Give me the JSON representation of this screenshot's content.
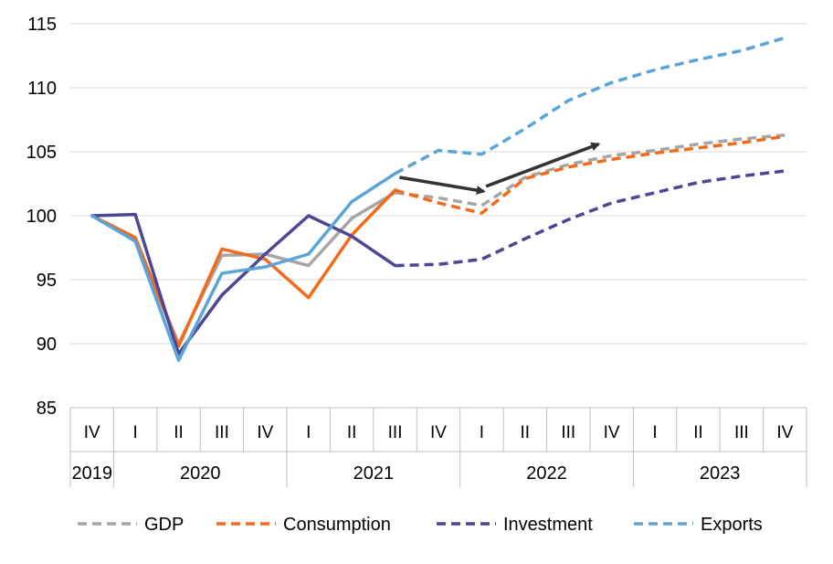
{
  "chart_data": {
    "type": "line",
    "title": "",
    "xlabel": "",
    "ylabel": "",
    "ylim": [
      85,
      115
    ],
    "yticks": [
      85,
      90,
      95,
      100,
      105,
      110,
      115
    ],
    "grid": true,
    "legend_position": "bottom",
    "quarters": [
      "IV",
      "I",
      "II",
      "III",
      "IV",
      "I",
      "II",
      "III",
      "IV",
      "I",
      "II",
      "III",
      "IV",
      "I",
      "II",
      "III",
      "IV"
    ],
    "years": [
      {
        "label": "2019",
        "span": 1
      },
      {
        "label": "2020",
        "span": 4
      },
      {
        "label": "2021",
        "span": 4
      },
      {
        "label": "2022",
        "span": 4
      },
      {
        "label": "2023",
        "span": 4
      }
    ],
    "forecast_start_index": 7,
    "series": [
      {
        "name": "GDP",
        "color": "#a6a6a6",
        "values": [
          100,
          98.2,
          90.0,
          96.9,
          97.0,
          96.1,
          99.8,
          101.8,
          101.4,
          100.8,
          103.0,
          104.0,
          104.7,
          105.1,
          105.6,
          106.0,
          106.3
        ]
      },
      {
        "name": "Consumption",
        "color": "#f26a1b",
        "values": [
          100,
          98.3,
          89.8,
          97.4,
          96.6,
          93.6,
          98.5,
          102.0,
          101.0,
          100.2,
          102.9,
          103.8,
          104.4,
          104.9,
          105.3,
          105.7,
          106.2
        ]
      },
      {
        "name": "Investment",
        "color": "#4b4793",
        "values": [
          100,
          100.1,
          89.2,
          93.8,
          97.0,
          100.0,
          98.4,
          96.1,
          96.2,
          96.6,
          98.2,
          99.7,
          101.0,
          101.8,
          102.6,
          103.1,
          103.5
        ]
      },
      {
        "name": "Exports",
        "color": "#5ba4d8",
        "values": [
          100,
          98.0,
          88.7,
          95.5,
          96.0,
          97.0,
          101.1,
          103.3,
          105.1,
          104.8,
          106.8,
          109.0,
          110.4,
          111.4,
          112.2,
          112.9,
          113.9
        ]
      }
    ],
    "annotations": [
      {
        "type": "arrow",
        "from": {
          "x_index": 7.1,
          "y": 103.0
        },
        "to": {
          "x_index": 9.05,
          "y": 101.9
        },
        "color": "#333333"
      },
      {
        "type": "arrow",
        "from": {
          "x_index": 9.1,
          "y": 102.3
        },
        "to": {
          "x_index": 11.7,
          "y": 105.6
        },
        "color": "#333333"
      }
    ]
  }
}
